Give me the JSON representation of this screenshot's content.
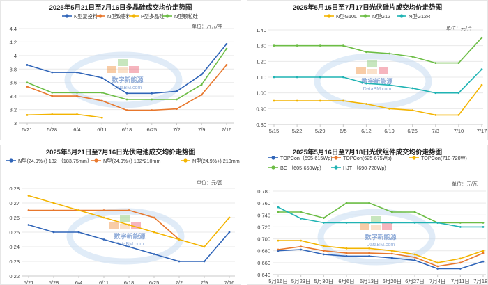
{
  "colors": {
    "blue": "#2f64b8",
    "orange": "#e8772c",
    "yellow": "#f3b400",
    "green": "#6cbd45",
    "teal": "#1fb3b3",
    "grid": "#e9e9e9",
    "axis": "#c8c8c8",
    "tick": "#444444",
    "title": "#222222"
  },
  "watermark": {
    "cn_text": "数字新能源",
    "url_text": "DataBM.com"
  },
  "chart_data": [
    {
      "type": "line",
      "title": "2025年5月21日至7月16日多晶硅成交均价走势图",
      "unit": "单位：万元/吨",
      "categories": [
        "5/21",
        "5/28",
        "6/4",
        "6/11",
        "6/18",
        "6/25",
        "7/2",
        "7/9",
        "7/16"
      ],
      "ylim": [
        3,
        4.4
      ],
      "yticks": [
        3,
        3.2,
        3.4,
        3.6,
        3.8,
        4,
        4.2,
        4.4
      ],
      "ytick_labels": [
        "3",
        "3.2",
        "3.4",
        "3.6",
        "3.8",
        "4",
        "4.2",
        "4.4"
      ],
      "legend_position": "top",
      "series": [
        {
          "name": "N型复投料",
          "color": "#2f64b8",
          "values": [
            3.86,
            3.75,
            3.75,
            3.67,
            3.44,
            3.44,
            3.47,
            3.72,
            4.17
          ]
        },
        {
          "name": "N型致密料",
          "color": "#e8772c",
          "values": [
            3.54,
            3.4,
            3.4,
            3.33,
            3.19,
            3.19,
            3.21,
            3.42,
            3.86
          ]
        },
        {
          "name": "P型多晶硅",
          "color": "#f3b400",
          "values": [
            3.12,
            3.13,
            3.13,
            3.08,
            null,
            null,
            null,
            null,
            null
          ]
        },
        {
          "name": "N型颗粒硅",
          "color": "#6cbd45",
          "values": [
            3.6,
            3.45,
            3.45,
            3.45,
            3.35,
            3.35,
            3.35,
            3.57,
            4.1
          ]
        }
      ]
    },
    {
      "type": "line",
      "title": "2025年5月15日至7月17日光伏硅片成交均价走势图",
      "unit": "单位：元/片",
      "categories": [
        "5/15",
        "5/22",
        "5/29",
        "6/5",
        "6/12",
        "6/19",
        "6/26",
        "7/3",
        "7/10",
        "7/17"
      ],
      "ylim": [
        0.8,
        1.4
      ],
      "yticks": [
        0.8,
        0.9,
        1.0,
        1.1,
        1.2,
        1.3,
        1.4
      ],
      "ytick_labels": [
        "0.80",
        "0.90",
        "1.00",
        "1.10",
        "1.20",
        "1.30",
        "1.40"
      ],
      "legend_position": "top",
      "series": [
        {
          "name": "N型G10L",
          "color": "#f3b400",
          "values": [
            0.95,
            0.95,
            0.95,
            0.95,
            0.93,
            0.9,
            0.89,
            0.86,
            0.86,
            1.05
          ]
        },
        {
          "name": "N型G12",
          "color": "#6cbd45",
          "values": [
            1.3,
            1.3,
            1.3,
            1.3,
            1.26,
            1.25,
            1.23,
            1.19,
            1.19,
            1.35
          ]
        },
        {
          "name": "N型G12R",
          "color": "#1fb3b3",
          "values": [
            1.1,
            1.1,
            1.1,
            1.1,
            1.06,
            1.05,
            1.03,
            1.0,
            1.0,
            1.15
          ]
        }
      ]
    },
    {
      "type": "line",
      "title": "2025年5月21日至7月16日光伏电池成交均价走势图",
      "unit": "单位：元/瓦",
      "categories": [
        "5/21",
        "5/28",
        "6/4",
        "6/11",
        "6/18",
        "6/25",
        "7/2",
        "7/9",
        "7/16"
      ],
      "ylim": [
        0.22,
        0.28
      ],
      "yticks": [
        0.22,
        0.23,
        0.24,
        0.25,
        0.26,
        0.27,
        0.28
      ],
      "ytick_labels": [
        "0.22",
        "0.23",
        "0.24",
        "0.25",
        "0.26",
        "0.27",
        "0.28"
      ],
      "legend_position": "top",
      "series": [
        {
          "name": "N型(24.9%+) 182 （183.75mm）",
          "color": "#2f64b8",
          "values": [
            0.255,
            0.25,
            0.25,
            0.245,
            0.24,
            0.235,
            0.23,
            0.23,
            0.25
          ]
        },
        {
          "name": "N型(24.9%+) 182*210mm",
          "color": "#e8772c",
          "values": [
            0.265,
            0.265,
            0.265,
            0.265,
            0.265,
            0.26,
            0.245,
            null,
            null
          ]
        },
        {
          "name": "N型(24.9%+) 210mm",
          "color": "#f3b400",
          "values": [
            0.275,
            0.27,
            0.265,
            0.26,
            0.255,
            0.25,
            0.245,
            0.24,
            0.26
          ]
        }
      ]
    },
    {
      "type": "line",
      "title": "2025年5月16日至7月18日光伏组件成交均价走势图",
      "unit": "单位：元/瓦",
      "categories": [
        "5月16日",
        "5月23日",
        "5月30日",
        "6月6日",
        "6月13日",
        "6月20日",
        "6月27日",
        "7月4日",
        "7月11日",
        "7月18日"
      ],
      "ylim": [
        0.64,
        0.78
      ],
      "yticks": [
        0.64,
        0.66,
        0.68,
        0.7,
        0.72,
        0.74,
        0.76,
        0.78
      ],
      "ytick_labels": [
        "0.640",
        "0.660",
        "0.680",
        "0.700",
        "0.720",
        "0.740",
        "0.760",
        "0.780"
      ],
      "legend_position": "top",
      "series": [
        {
          "name": "TOPCon（595-615Wp)",
          "color": "#2f64b8",
          "values": [
            0.68,
            0.682,
            0.674,
            0.671,
            0.671,
            0.668,
            0.664,
            0.65,
            0.65,
            0.662
          ]
        },
        {
          "name": "TOPCon(625-675Wp)",
          "color": "#e8772c",
          "values": [
            0.682,
            0.687,
            0.68,
            0.676,
            0.676,
            0.675,
            0.669,
            0.654,
            0.66,
            0.676
          ]
        },
        {
          "name": "TOPCon(710-720W)",
          "color": "#f3b400",
          "values": [
            0.697,
            0.697,
            0.688,
            0.684,
            0.684,
            0.68,
            0.674,
            0.66,
            0.667,
            0.68
          ]
        },
        {
          "name": "BC （605-650Wp)",
          "color": "#6cbd45",
          "values": [
            0.745,
            0.745,
            0.735,
            0.76,
            0.76,
            0.745,
            0.745,
            0.727,
            0.727,
            0.727
          ]
        },
        {
          "name": "HJT （690-720Wp)",
          "color": "#1fb3b3",
          "values": [
            0.753,
            0.734,
            0.727,
            0.727,
            0.727,
            0.727,
            0.727,
            0.727,
            0.72,
            0.72
          ]
        }
      ]
    }
  ]
}
